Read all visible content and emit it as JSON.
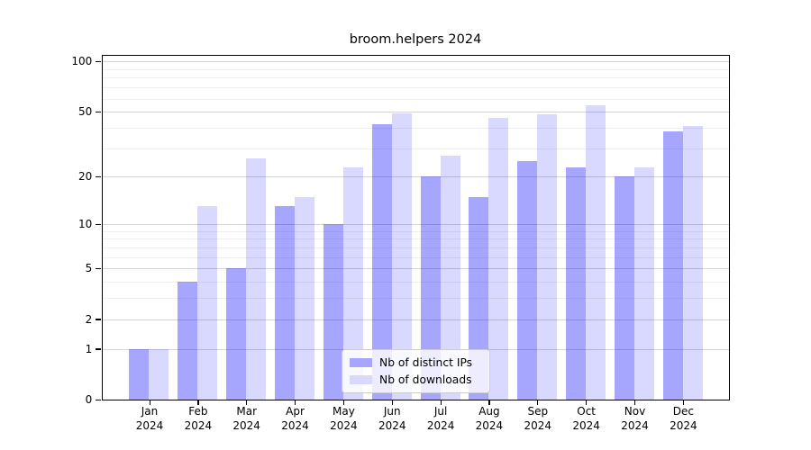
{
  "title": "broom.helpers 2024",
  "colors": {
    "bar_base": "#0000ff",
    "bar_ips_effective": "#a6a6ff",
    "bar_downloads_effective": "#d9d9ff",
    "bar_ips_alpha": 0.35,
    "bar_downloads_alpha": 0.15,
    "grid_major": "#d4d4d4",
    "grid_minor": "#f0f0f0",
    "spine": "#000000",
    "legend_border": "#cccccc"
  },
  "legend": {
    "items": [
      {
        "label": "Nb of distinct IPs",
        "series": "ips"
      },
      {
        "label": "Nb of downloads",
        "series": "downloads"
      }
    ],
    "position": "lower center"
  },
  "y_axis": {
    "scale": "log10(1+x)",
    "tick_labels": [
      "0",
      "1",
      "2",
      "5",
      "10",
      "20",
      "50",
      "100"
    ],
    "ticks": [
      0,
      1,
      2,
      5,
      10,
      20,
      50,
      100
    ],
    "minor_ticks": [
      3,
      4,
      6,
      7,
      8,
      9,
      30,
      40,
      60,
      70,
      80,
      90
    ]
  },
  "x_axis": {
    "months": [
      "Jan",
      "Feb",
      "Mar",
      "Apr",
      "May",
      "Jun",
      "Jul",
      "Aug",
      "Sep",
      "Oct",
      "Nov",
      "Dec"
    ],
    "year": "2024"
  },
  "chart_data": {
    "type": "bar",
    "title": "broom.helpers 2024",
    "categories": [
      "Jan 2024",
      "Feb 2024",
      "Mar 2024",
      "Apr 2024",
      "May 2024",
      "Jun 2024",
      "Jul 2024",
      "Aug 2024",
      "Sep 2024",
      "Oct 2024",
      "Nov 2024",
      "Dec 2024"
    ],
    "series": [
      {
        "name": "Nb of distinct IPs",
        "values": [
          1,
          4,
          5,
          13,
          10,
          42,
          20,
          15,
          25,
          23,
          20,
          38
        ]
      },
      {
        "name": "Nb of downloads",
        "values": [
          1,
          13,
          26,
          15,
          23,
          49,
          27,
          46,
          48,
          55,
          23,
          41
        ]
      }
    ],
    "xlabel": "",
    "ylabel": "",
    "yscale": "log1p",
    "yticks": [
      0,
      1,
      2,
      5,
      10,
      20,
      50,
      100
    ],
    "ylim": [
      0,
      110
    ],
    "grid": true,
    "legend_position": "lower center"
  }
}
